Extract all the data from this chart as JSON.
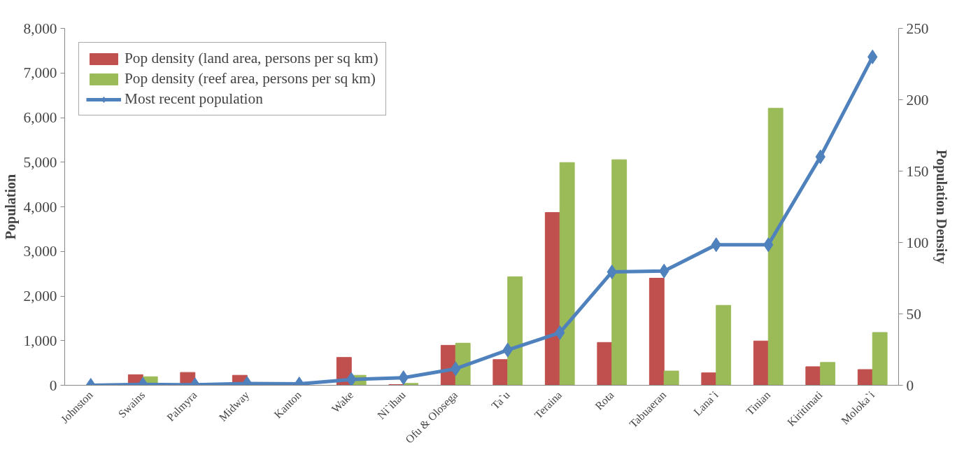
{
  "chart_data": {
    "type": "bar",
    "ylabel": "Population",
    "y2label": "Population Density",
    "categories": [
      "Johnston",
      "Swains",
      "Palmyra",
      "Midway",
      "Kanton",
      "Wake",
      "Ni`ihau",
      "Ofu & Olosega",
      "Ta`u",
      "Teraina",
      "Rota",
      "Tabuaeran",
      "Lana`i",
      "Tinian",
      "Kiritimati",
      "Moloka`i"
    ],
    "series": [
      {
        "name": "Pop density (land area, persons per sq km)",
        "axis": "y2",
        "color": "#c0504d",
        "values": [
          0,
          7.4,
          9,
          7,
          0,
          19.5,
          0.5,
          28,
          18,
          121,
          30,
          75,
          8.7,
          31,
          13,
          11
        ]
      },
      {
        "name": "Pop density (reef area, persons per sq km)",
        "axis": "y2",
        "color": "#9bbb59",
        "values": [
          0,
          6,
          0,
          0,
          0,
          7,
          1.3,
          29.5,
          76,
          156,
          158,
          10,
          56,
          194,
          16,
          37
        ]
      },
      {
        "name": "Most recent population",
        "type": "line",
        "axis": "y",
        "color": "#4f81bd",
        "marker": "diamond",
        "values": [
          0,
          20,
          10,
          40,
          30,
          130,
          170,
          370,
          790,
          1180,
          2540,
          2560,
          3150,
          3150,
          5120,
          7360
        ]
      }
    ],
    "ylim": [
      0,
      8000
    ],
    "yticks": [
      {
        "value": 0,
        "label": "0"
      },
      {
        "value": 1000,
        "label": "1,000"
      },
      {
        "value": 2000,
        "label": "2,000"
      },
      {
        "value": 3000,
        "label": "3,000"
      },
      {
        "value": 4000,
        "label": "4,000"
      },
      {
        "value": 5000,
        "label": "5,000"
      },
      {
        "value": 6000,
        "label": "6,000"
      },
      {
        "value": 7000,
        "label": "7,000"
      },
      {
        "value": 8000,
        "label": "8,000"
      }
    ],
    "y2lim": [
      0,
      250
    ],
    "y2ticks": [
      0,
      50,
      100,
      150,
      200,
      250
    ],
    "grid": false,
    "legend": "top left"
  }
}
